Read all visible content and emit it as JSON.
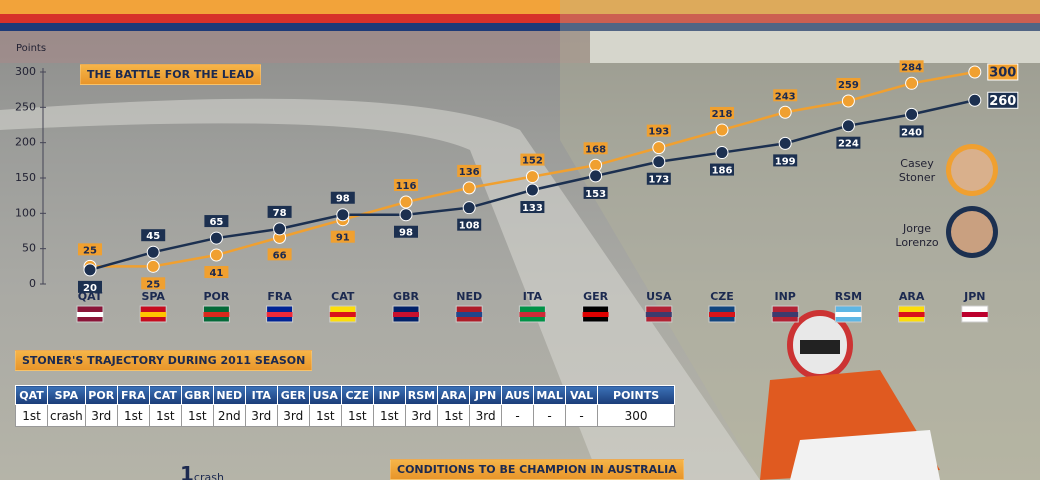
{
  "chart_data": {
    "type": "line",
    "title": "THE BATTLE FOR THE LEAD",
    "ylabel": "Points",
    "categories": [
      "QAT",
      "SPA",
      "POR",
      "FRA",
      "CAT",
      "GBR",
      "NED",
      "ITA",
      "GER",
      "USA",
      "CZE",
      "INP",
      "RSM",
      "ARA",
      "JPN"
    ],
    "series": [
      {
        "name": "Casey Stoner",
        "color": "#f0a030",
        "values": [
          25,
          25,
          41,
          66,
          91,
          116,
          136,
          152,
          168,
          193,
          218,
          243,
          259,
          284,
          300
        ]
      },
      {
        "name": "Jorge Lorenzo",
        "color": "#1c3050",
        "values": [
          20,
          45,
          65,
          78,
          98,
          98,
          108,
          133,
          153,
          173,
          186,
          199,
          224,
          240,
          260
        ]
      }
    ],
    "ylim": [
      0,
      300
    ],
    "yticks": [
      0,
      50,
      100,
      150,
      200,
      250,
      300
    ]
  },
  "table": {
    "title": "STONER'S TRAJECTORY DURING 2011 SEASON",
    "header": [
      "QAT",
      "SPA",
      "POR",
      "FRA",
      "CAT",
      "GBR",
      "NED",
      "ITA",
      "GER",
      "USA",
      "CZE",
      "INP",
      "RSM",
      "ARA",
      "JPN",
      "AUS",
      "MAL",
      "VAL",
      "POINTS"
    ],
    "rows": [
      [
        "1st",
        "crash",
        "3rd",
        "1st",
        "1st",
        "1st",
        "2nd",
        "3rd",
        "3rd",
        "1st",
        "1st",
        "1st",
        "3rd",
        "1st",
        "3rd",
        "-",
        "-",
        "-",
        "300"
      ]
    ]
  },
  "footer": {
    "count": "1",
    "count_label": "crash",
    "conditions_title": "CONDITIONS TO BE CHAMPION IN AUSTRALIA"
  }
}
